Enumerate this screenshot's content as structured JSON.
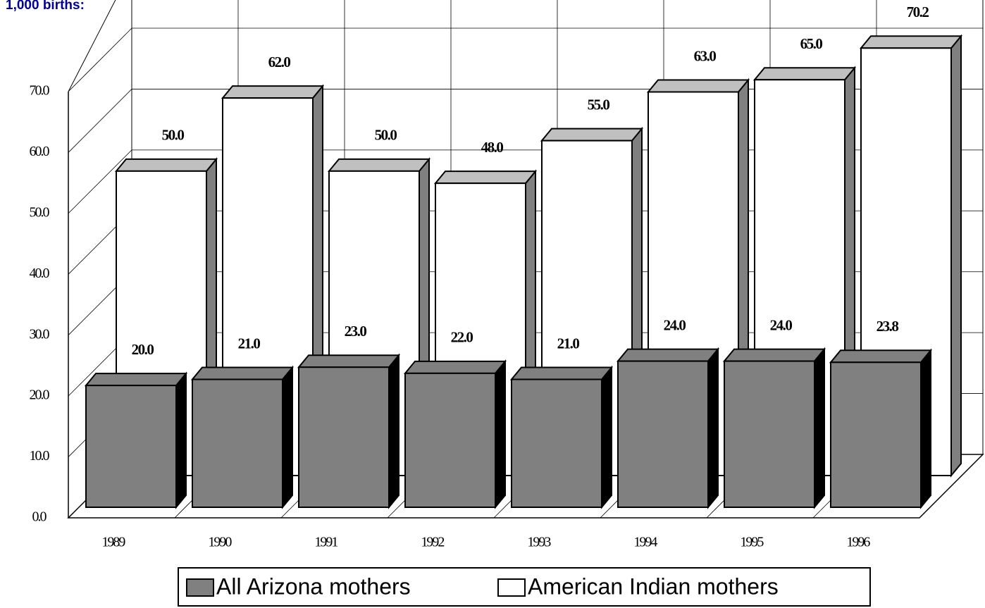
{
  "chart_data": {
    "type": "bar3d",
    "title": "1,000 births:",
    "categories": [
      "1989",
      "1990",
      "1991",
      "1992",
      "1993",
      "1994",
      "1995",
      "1996"
    ],
    "series": [
      {
        "name": "All Arizona mothers",
        "color": "#808080",
        "values": [
          20.0,
          21.0,
          23.0,
          22.0,
          21.0,
          24.0,
          24.0,
          23.8
        ],
        "value_labels": [
          "20.0",
          "21.0",
          "23.0",
          "22.0",
          "21.0",
          "24.0",
          "24.0",
          "23.8"
        ]
      },
      {
        "name": "American Indian mothers",
        "color": "#ffffff",
        "values": [
          50.0,
          62.0,
          50.0,
          48.0,
          55.0,
          63.0,
          65.0,
          70.2
        ],
        "value_labels": [
          "50.0",
          "62.0",
          "50.0",
          "48.0",
          "55.0",
          "63.0",
          "65.0",
          "70.2"
        ]
      }
    ],
    "ylim": [
      0,
      70
    ],
    "yticks": [
      {
        "value": 0,
        "label": "0.0"
      },
      {
        "value": 10,
        "label": "10.0"
      },
      {
        "value": 20,
        "label": "20.0"
      },
      {
        "value": 30,
        "label": "30.0"
      },
      {
        "value": 40,
        "label": "40.0"
      },
      {
        "value": 50,
        "label": "50.0"
      },
      {
        "value": 60,
        "label": "60.0"
      },
      {
        "value": 70,
        "label": "70.0"
      }
    ],
    "grid": true,
    "legend": "bottom"
  }
}
